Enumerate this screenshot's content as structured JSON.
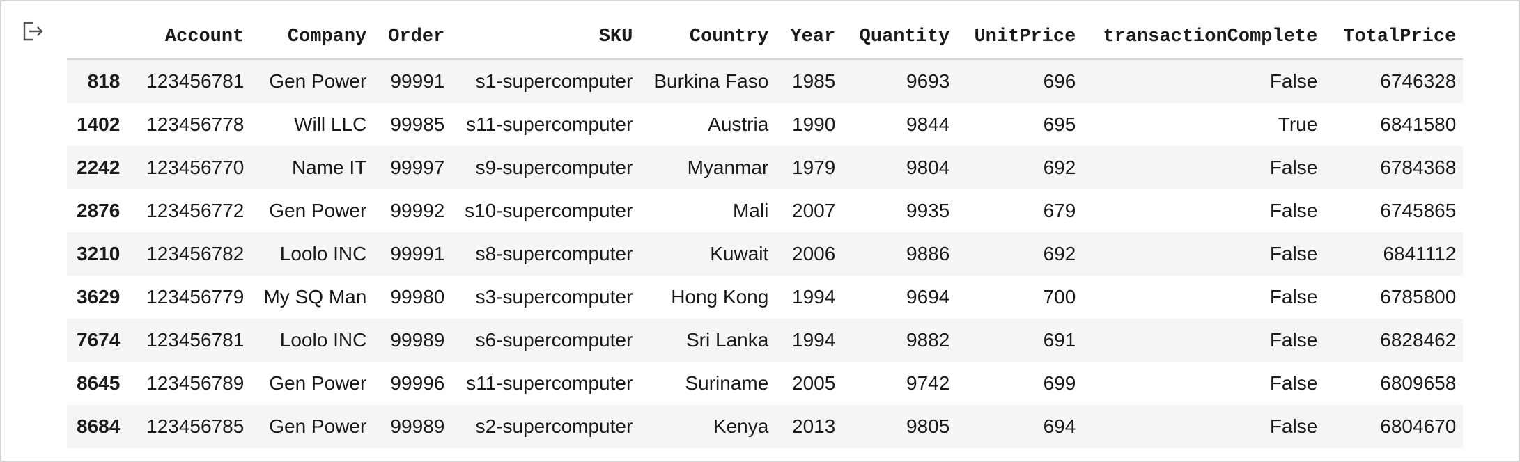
{
  "output_icon": "output-redirect-icon",
  "table": {
    "columns": [
      "",
      "Account",
      "Company",
      "Order",
      "SKU",
      "Country",
      "Year",
      "Quantity",
      "UnitPrice",
      "transactionComplete",
      "TotalPrice"
    ],
    "rows": [
      [
        "818",
        "123456781",
        "Gen Power",
        "99991",
        "s1-supercomputer",
        "Burkina Faso",
        "1985",
        "9693",
        "696",
        "False",
        "6746328"
      ],
      [
        "1402",
        "123456778",
        "Will LLC",
        "99985",
        "s11-supercomputer",
        "Austria",
        "1990",
        "9844",
        "695",
        "True",
        "6841580"
      ],
      [
        "2242",
        "123456770",
        "Name IT",
        "99997",
        "s9-supercomputer",
        "Myanmar",
        "1979",
        "9804",
        "692",
        "False",
        "6784368"
      ],
      [
        "2876",
        "123456772",
        "Gen Power",
        "99992",
        "s10-supercomputer",
        "Mali",
        "2007",
        "9935",
        "679",
        "False",
        "6745865"
      ],
      [
        "3210",
        "123456782",
        "Loolo INC",
        "99991",
        "s8-supercomputer",
        "Kuwait",
        "2006",
        "9886",
        "692",
        "False",
        "6841112"
      ],
      [
        "3629",
        "123456779",
        "My SQ Man",
        "99980",
        "s3-supercomputer",
        "Hong Kong",
        "1994",
        "9694",
        "700",
        "False",
        "6785800"
      ],
      [
        "7674",
        "123456781",
        "Loolo INC",
        "99989",
        "s6-supercomputer",
        "Sri Lanka",
        "1994",
        "9882",
        "691",
        "False",
        "6828462"
      ],
      [
        "8645",
        "123456789",
        "Gen Power",
        "99996",
        "s11-supercomputer",
        "Suriname",
        "2005",
        "9742",
        "699",
        "False",
        "6809658"
      ],
      [
        "8684",
        "123456785",
        "Gen Power",
        "99989",
        "s2-supercomputer",
        "Kenya",
        "2013",
        "9805",
        "694",
        "False",
        "6804670"
      ]
    ]
  }
}
